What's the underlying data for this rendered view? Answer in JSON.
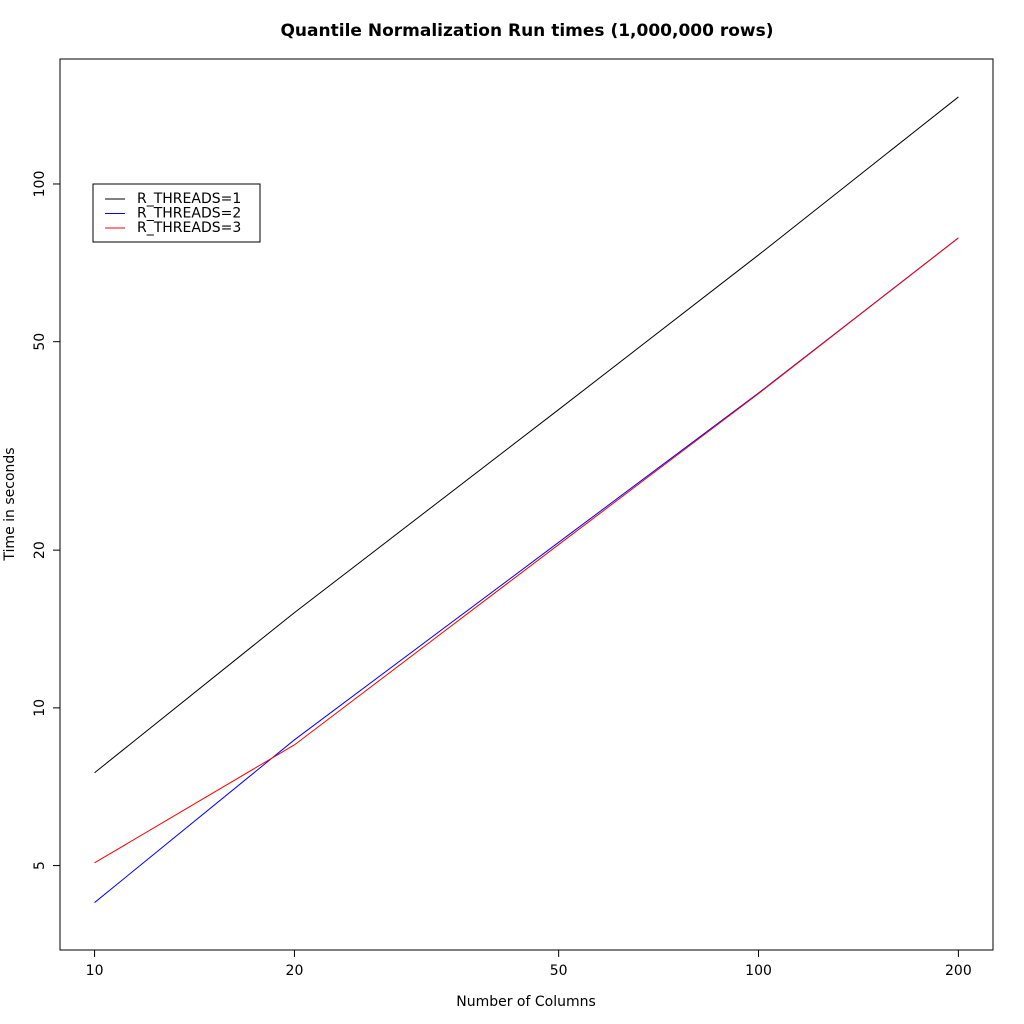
{
  "chart_data": {
    "type": "line",
    "title": "Quantile Normalization Run times (1,000,000 rows)",
    "x_label": "Number of Columns",
    "y_label": "Time in seconds",
    "x": [
      10,
      20,
      50,
      100,
      200
    ],
    "series": [
      {
        "name": "R_THREADS=1",
        "color": "#000000",
        "values": [
          7.52,
          15.2,
          37.1,
          73.2,
          146.6
        ]
      },
      {
        "name": "R_THREADS=2",
        "color": "#0000ff",
        "values": [
          4.25,
          8.69,
          20.7,
          39.9,
          78.9
        ]
      },
      {
        "name": "R_THREADS=3",
        "color": "#ff0000",
        "values": [
          5.06,
          8.5,
          20.5,
          39.8,
          78.9
        ]
      }
    ],
    "xlog": true,
    "ylog": true,
    "xlim": [
      8.87,
      225.5
    ],
    "ylim": [
      3.45,
      173.2
    ],
    "xticks": [
      10,
      20,
      50,
      100,
      200
    ],
    "yticks": [
      5,
      10,
      20,
      50,
      100
    ],
    "legend": "top-left"
  }
}
